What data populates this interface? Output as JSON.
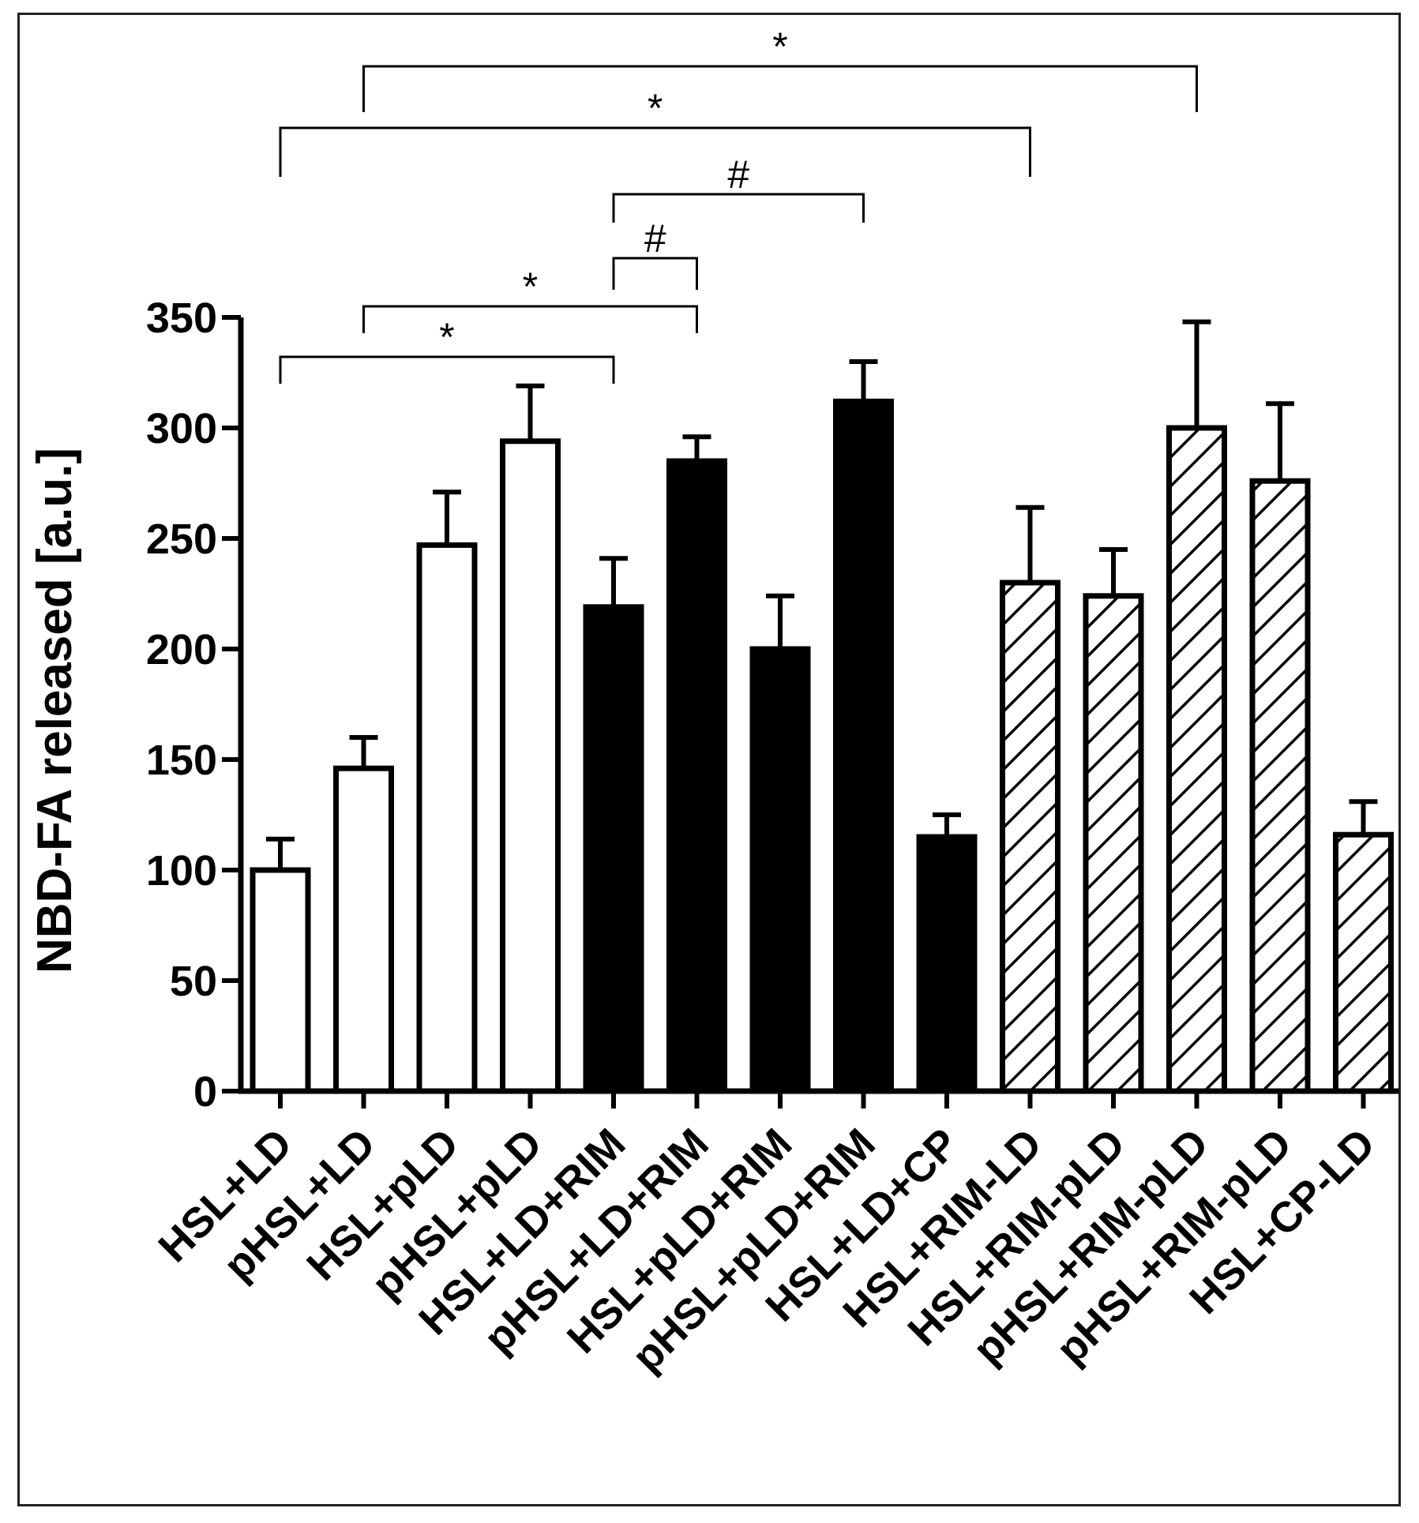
{
  "chart_data": {
    "type": "bar",
    "title": "",
    "xlabel": "",
    "ylabel": "NBD-FA released [a.u.]",
    "ylim": [
      0,
      350
    ],
    "yticks": [
      0,
      50,
      100,
      150,
      200,
      250,
      300,
      350
    ],
    "categories": [
      "HSL+LD",
      "pHSL+LD",
      "HSL+pLD",
      "pHSL+pLD",
      "HSL+LD+RIM",
      "pHSL+LD+RIM",
      "HSL+pLD+RIM",
      "pHSL+pLD+RIM",
      "HSL+LD+CP",
      "HSL+RIM-LD",
      "HSL+RIM-pLD",
      "pHSL+RIM-pLD",
      "pHSL+RIM-pLD",
      "HSL+CP-LD"
    ],
    "values": [
      100,
      146,
      247,
      294,
      219,
      285,
      200,
      312,
      115,
      230,
      224,
      300,
      276,
      116
    ],
    "errors": [
      14,
      14,
      24,
      25,
      22,
      11,
      24,
      18,
      10,
      34,
      21,
      48,
      35,
      15
    ],
    "fills": [
      "open",
      "open",
      "open",
      "open",
      "solid",
      "solid",
      "solid",
      "solid",
      "solid",
      "hatched",
      "hatched",
      "hatched",
      "hatched",
      "hatched"
    ],
    "significance": [
      {
        "from": 0,
        "to": 4,
        "label": "*"
      },
      {
        "from": 1,
        "to": 5,
        "label": "*"
      },
      {
        "from": 4,
        "to": 5,
        "label": "#"
      },
      {
        "from": 4,
        "to": 7,
        "label": "#"
      },
      {
        "from": 0,
        "to": 9,
        "label": "*"
      },
      {
        "from": 1,
        "to": 11,
        "label": "*"
      }
    ]
  },
  "colors": {
    "ink": "#000000",
    "background": "#ffffff"
  }
}
